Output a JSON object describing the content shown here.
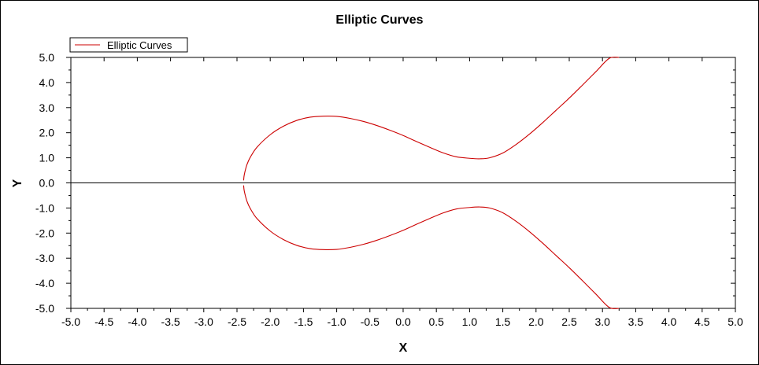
{
  "chart_data": {
    "type": "line",
    "title": "Elliptic Curves",
    "xlabel": "X",
    "ylabel": "Y",
    "xlim": [
      -5.0,
      5.0
    ],
    "ylim": [
      -5.0,
      5.0
    ],
    "x_ticks": [
      "-5.0",
      "-4.5",
      "-4.0",
      "-3.5",
      "-3.0",
      "-2.5",
      "-2.0",
      "-1.5",
      "-1.0",
      "-0.5",
      "0.0",
      "0.5",
      "1.0",
      "1.5",
      "2.0",
      "2.5",
      "3.0",
      "3.5",
      "4.0",
      "4.5",
      "5.0"
    ],
    "y_ticks": [
      "5.0",
      "4.0",
      "3.0",
      "2.0",
      "1.0",
      "0.0",
      "-1.0",
      "-2.0",
      "-3.0",
      "-4.0",
      "-5.0"
    ],
    "grid": false,
    "legend_position": "top-left",
    "series": [
      {
        "name": "Elliptic Curves",
        "color": "#cc0000",
        "branches": [
          {
            "x": [
              -2.4,
              -2.39,
              -2.35,
              -2.3,
              -2.2,
              -2.0,
              -1.8,
              -1.6,
              -1.4,
              -1.2,
              -1.0,
              -0.8,
              -0.6,
              -0.4,
              -0.2,
              0.0,
              0.2,
              0.4,
              0.6,
              0.8,
              1.0,
              1.155,
              1.3,
              1.5,
              1.7,
              1.9,
              2.1,
              2.3,
              2.5,
              2.7,
              2.9,
              3.1,
              3.25
            ],
            "y": [
              0.1,
              0.33,
              0.73,
              1.02,
              1.42,
              1.92,
              2.26,
              2.49,
              2.62,
              2.66,
              2.65,
              2.57,
              2.45,
              2.29,
              2.1,
              1.89,
              1.65,
              1.42,
              1.2,
              1.04,
              0.98,
              0.96,
              1.0,
              1.19,
              1.53,
              1.94,
              2.4,
              2.89,
              3.38,
              3.9,
              4.43,
              4.96,
              5.0
            ]
          },
          {
            "x": [
              -2.4,
              -2.39,
              -2.35,
              -2.3,
              -2.2,
              -2.0,
              -1.8,
              -1.6,
              -1.4,
              -1.2,
              -1.0,
              -0.8,
              -0.6,
              -0.4,
              -0.2,
              0.0,
              0.2,
              0.4,
              0.6,
              0.8,
              1.0,
              1.155,
              1.3,
              1.5,
              1.7,
              1.9,
              2.1,
              2.3,
              2.5,
              2.7,
              2.9,
              3.1,
              3.25
            ],
            "y": [
              -0.1,
              -0.33,
              -0.73,
              -1.02,
              -1.42,
              -1.92,
              -2.26,
              -2.49,
              -2.62,
              -2.66,
              -2.65,
              -2.57,
              -2.45,
              -2.29,
              -2.1,
              -1.89,
              -1.65,
              -1.42,
              -1.2,
              -1.04,
              -0.98,
              -0.96,
              -1.0,
              -1.19,
              -1.53,
              -1.94,
              -2.4,
              -2.89,
              -3.38,
              -3.9,
              -4.43,
              -4.96,
              -5.0
            ]
          }
        ]
      }
    ]
  }
}
